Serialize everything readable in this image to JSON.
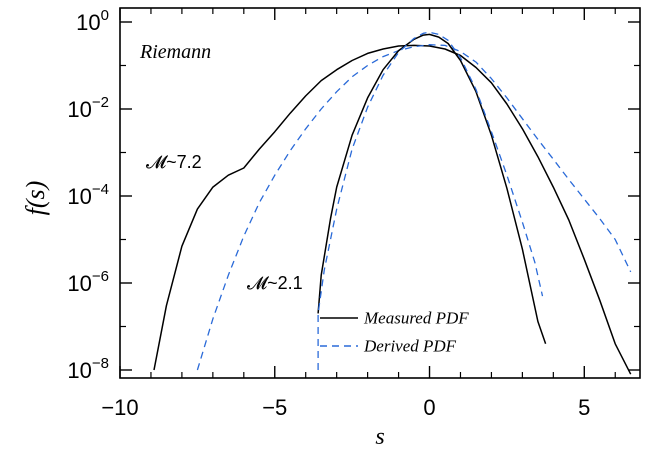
{
  "chart_data": {
    "type": "line",
    "title": "",
    "xlabel": "s",
    "ylabel": "f(s)",
    "x_scale": "linear",
    "y_scale": "log",
    "xlim": [
      -10,
      6.8
    ],
    "ylim": [
      1e-08,
      1
    ],
    "x_ticks": [
      -10,
      -5,
      0,
      5
    ],
    "x_tick_labels": [
      "−10",
      "−5",
      "0",
      "5"
    ],
    "y_ticks": [
      {
        "value": 1,
        "base": "10",
        "exp": "0"
      },
      {
        "value": 0.01,
        "base": "10",
        "exp": "-2"
      },
      {
        "value": 0.0001,
        "base": "10",
        "exp": "-4"
      },
      {
        "value": 1e-06,
        "base": "10",
        "exp": "-6"
      },
      {
        "value": 1e-08,
        "base": "10",
        "exp": "-8"
      }
    ],
    "grid": false,
    "legend": {
      "position": "bottom-center",
      "entries": [
        {
          "label": "Measured PDF",
          "style": "solid",
          "color": "#000000"
        },
        {
          "label": "Derived PDF",
          "style": "dashed",
          "color": "#2a6ad8"
        }
      ]
    },
    "annotations": [
      {
        "text": "Riemann",
        "x": -9.4,
        "y": 0.15
      },
      {
        "text": "𝓜~7.2",
        "x": -9.2,
        "y": 0.00045
      },
      {
        "text": "𝓜~2.1",
        "x": -5.8,
        "y": 1.2e-06
      }
    ],
    "series": [
      {
        "group": "M~7.2",
        "style": "solid",
        "color": "#000000",
        "x": [
          -8.9,
          -8.5,
          -8.0,
          -7.5,
          -7.0,
          -6.5,
          -6.0,
          -5.5,
          -5.0,
          -4.5,
          -4.0,
          -3.5,
          -3.0,
          -2.5,
          -2.0,
          -1.5,
          -1.0,
          -0.5,
          0.0,
          0.5,
          1.0,
          1.5,
          2.0,
          2.5,
          3.0,
          3.5,
          4.0,
          4.5,
          5.0,
          5.5,
          6.0,
          6.5
        ],
        "y": [
          1e-08,
          3e-07,
          7e-06,
          5e-05,
          0.00016,
          0.0003,
          0.00044,
          0.0012,
          0.003,
          0.008,
          0.02,
          0.045,
          0.08,
          0.13,
          0.19,
          0.24,
          0.28,
          0.29,
          0.28,
          0.24,
          0.17,
          0.09,
          0.04,
          0.013,
          0.0035,
          0.0008,
          0.00016,
          2.8e-05,
          3.5e-06,
          4e-07,
          4e-08,
          8e-09
        ]
      },
      {
        "group": "M~7.2",
        "style": "dashed",
        "color": "#2a6ad8",
        "x": [
          -7.5,
          -7.0,
          -6.5,
          -6.0,
          -5.5,
          -5.0,
          -4.5,
          -4.0,
          -3.5,
          -3.0,
          -2.5,
          -2.0,
          -1.5,
          -1.0,
          -0.5,
          0.0,
          0.5,
          1.0,
          1.5,
          2.0,
          2.5,
          3.0,
          3.5,
          4.0,
          4.5,
          5.0,
          5.5,
          6.0,
          6.5
        ],
        "y": [
          1e-08,
          1.5e-07,
          1.5e-06,
          1.2e-05,
          7e-05,
          0.0003,
          0.0011,
          0.0035,
          0.01,
          0.025,
          0.055,
          0.1,
          0.16,
          0.22,
          0.27,
          0.3,
          0.29,
          0.21,
          0.12,
          0.05,
          0.018,
          0.006,
          0.002,
          0.0007,
          0.00024,
          8.5e-05,
          3e-05,
          1e-05,
          1.8e-06
        ]
      },
      {
        "group": "M~2.1",
        "style": "solid",
        "color": "#000000",
        "x": [
          -3.6,
          -3.5,
          -3.2,
          -3.0,
          -2.5,
          -2.0,
          -1.5,
          -1.0,
          -0.5,
          -0.2,
          0.0,
          0.3,
          0.6,
          1.0,
          1.5,
          2.0,
          2.5,
          3.0,
          3.5,
          3.75
        ],
        "y": [
          2e-07,
          1.5e-06,
          3e-05,
          0.00016,
          0.0025,
          0.018,
          0.08,
          0.22,
          0.4,
          0.5,
          0.52,
          0.45,
          0.32,
          0.13,
          0.025,
          0.0025,
          0.00015,
          6e-06,
          1.3e-07,
          4e-08
        ]
      },
      {
        "group": "M~2.1",
        "style": "dashed",
        "color": "#2a6ad8",
        "x": [
          -3.6,
          -3.6,
          -3.4,
          -3.0,
          -2.5,
          -2.0,
          -1.5,
          -1.0,
          -0.5,
          -0.2,
          0.0,
          0.3,
          0.6,
          1.0,
          1.5,
          2.0,
          2.5,
          3.0,
          3.4,
          3.65
        ],
        "y": [
          1e-08,
          2e-07,
          2e-06,
          5e-05,
          0.0012,
          0.011,
          0.06,
          0.2,
          0.42,
          0.55,
          0.58,
          0.52,
          0.38,
          0.15,
          0.028,
          0.003,
          0.0003,
          2.5e-05,
          3e-06,
          5e-07
        ]
      }
    ]
  }
}
